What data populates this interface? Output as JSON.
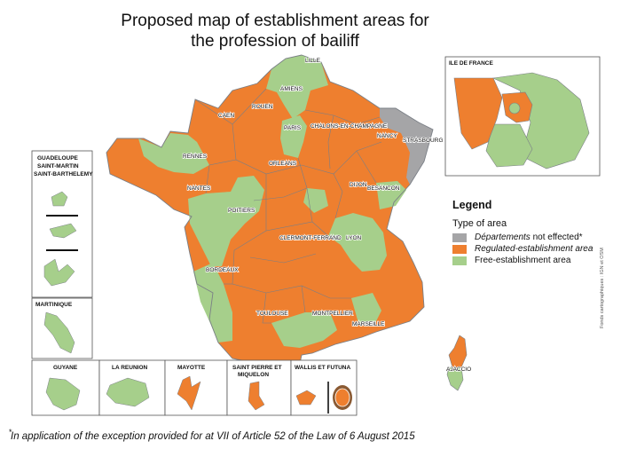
{
  "title_line1": "Proposed map of establishment areas for",
  "title_line2": "the profession of  bailiff",
  "colors": {
    "regulated": "#ee7f2f",
    "free": "#a6cf8b",
    "not_affected": "#a5a5a7",
    "border": "#7a7f86"
  },
  "cities": {
    "lille": "LILLE",
    "amiens": "AMIENS",
    "rouen": "ROUEN",
    "caen": "CAEN",
    "paris": "PARIS",
    "chalons": "CHALONS-EN-CHAMPAGNE",
    "nancy": "NANCY",
    "strasbourg": "STRASBOURG",
    "rennes": "RENNES",
    "orleans": "ORLEANS",
    "dijon": "DIJON",
    "besancon": "BESANCON",
    "nantes": "NANTES",
    "poitiers": "POITIERS",
    "clermont": "CLERMONT-FERRAND",
    "lyon": "LYON",
    "bordeaux": "BORDEAUX",
    "toulouse": "TOULOUSE",
    "montpellier": "MONTPELLIER",
    "marseille": "MARSEILLE",
    "ajaccio": "AJACCIO"
  },
  "ile_de_france_title": "ILE DE FRANCE",
  "overseas": {
    "guadeloupe": "GUADELOUPE",
    "saint_martin": "SAINT-MARTIN",
    "saint_barthelemy": "SAINT-BARTHELEMY",
    "martinique": "MARTINIQUE",
    "guyane": "GUYANE",
    "reunion": "LA REUNION",
    "mayotte": "MAYOTTE",
    "spm_line1": "SAINT PIERRE ET",
    "spm_line2": "MIQUELON",
    "wallis": "WALLIS ET FUTUNA"
  },
  "legend": {
    "title": "Legend",
    "type_label": "Type of area",
    "items": [
      {
        "italic": "Départements",
        "text": " not effected*",
        "color_key": "not_affected"
      },
      {
        "italic": "Regulated-establishment area",
        "text": "",
        "color_key": "regulated"
      },
      {
        "italic": "",
        "text": "Free-establishment area",
        "color_key": "free"
      }
    ]
  },
  "footnote_marker": "*",
  "footnote": "In application of the exception provided for at VII of Article 52 of the Law of 6 August 2015",
  "credit": "Fonds cartographiques : IGN et OSM"
}
